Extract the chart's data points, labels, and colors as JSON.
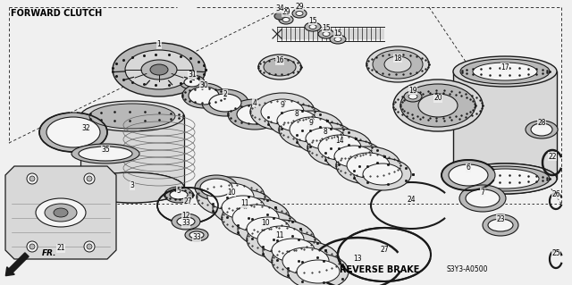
{
  "background_color": "#f0f0f0",
  "forward_clutch_label": "FORWARD CLUTCH",
  "reverse_brake_label": "REVERSE BRAKE",
  "part_number_label": "S3Y3-A0500",
  "fr_label": "FR.",
  "fig_width": 6.4,
  "fig_height": 3.19,
  "dpi": 100,
  "line_color": "#1a1a1a",
  "fill_light": "#d8d8d8",
  "fill_mid": "#b8b8b8",
  "fill_dark": "#888888",
  "fill_white": "#f5f5f5"
}
